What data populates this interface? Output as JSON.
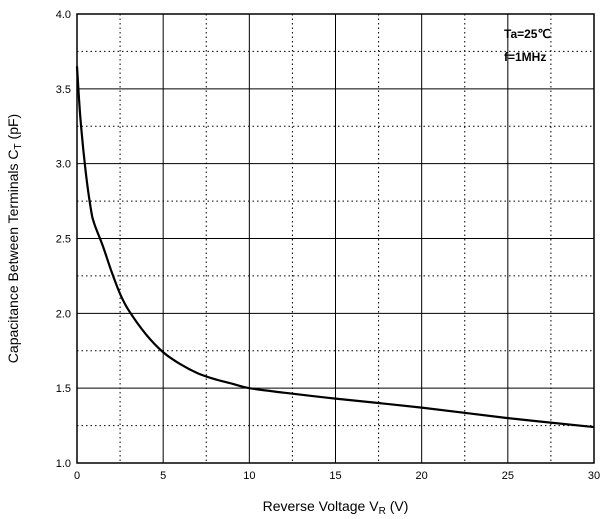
{
  "chart_data": {
    "type": "line",
    "xlabel": "Reverse Voltage V",
    "xlabel_sub": "R",
    "xlabel_unit": " (V)",
    "ylabel": "Capacitance Between Terminals  C",
    "ylabel_sub": "T",
    "ylabel_unit": " (pF)",
    "xlim": [
      0,
      30
    ],
    "ylim": [
      1.0,
      4.0
    ],
    "x_ticks": [
      0,
      5,
      10,
      15,
      20,
      25,
      30
    ],
    "x_tick_labels": [
      "0",
      "5",
      "10",
      "15",
      "20",
      "25",
      "30"
    ],
    "y_ticks": [
      1.0,
      1.5,
      2.0,
      2.5,
      3.0,
      3.5,
      4.0
    ],
    "y_tick_labels": [
      "1.0",
      "1.5",
      "2.0",
      "2.5",
      "3.0",
      "3.5",
      "4.0"
    ],
    "grid": "major solid, minor dotted",
    "annotations": [
      "Ta=25℃",
      "f=1MHz"
    ],
    "annotation_position": "top-right",
    "series": [
      {
        "color": "#000000",
        "x": [
          0,
          0.2,
          0.5,
          0.8,
          1.0,
          1.5,
          2.0,
          2.5,
          3.0,
          4.0,
          5.0,
          6.0,
          7.0,
          8.0,
          9.0,
          10.0,
          12.0,
          15.0,
          20.0,
          25.0,
          30.0
        ],
        "y": [
          3.65,
          3.3,
          2.95,
          2.7,
          2.6,
          2.45,
          2.28,
          2.13,
          2.02,
          1.86,
          1.74,
          1.66,
          1.6,
          1.56,
          1.53,
          1.5,
          1.47,
          1.43,
          1.37,
          1.3,
          1.24
        ]
      }
    ]
  }
}
